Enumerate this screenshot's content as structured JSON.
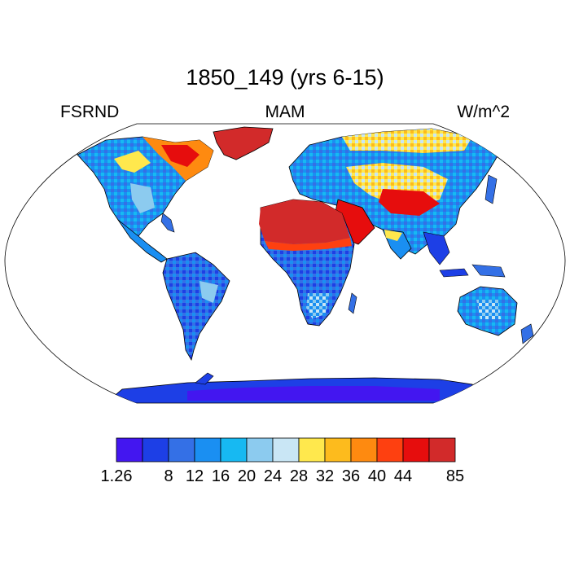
{
  "title": "1850_149 (yrs 6-15)",
  "left_label": "FSRND",
  "center_label": "MAM",
  "right_label": "W/m^2",
  "colorbar": {
    "colors": [
      "#4316f0",
      "#1d3fe6",
      "#3470e6",
      "#1a8ff2",
      "#17b9f2",
      "#8ccbef",
      "#c9e6f5",
      "#ffe84d",
      "#fdbb1d",
      "#fe8a10",
      "#fe4010",
      "#e60d0d",
      "#d22a2a"
    ],
    "tick_labels": [
      "1.26",
      "8",
      "12",
      "16",
      "20",
      "24",
      "28",
      "32",
      "36",
      "40",
      "44",
      "85"
    ]
  }
}
